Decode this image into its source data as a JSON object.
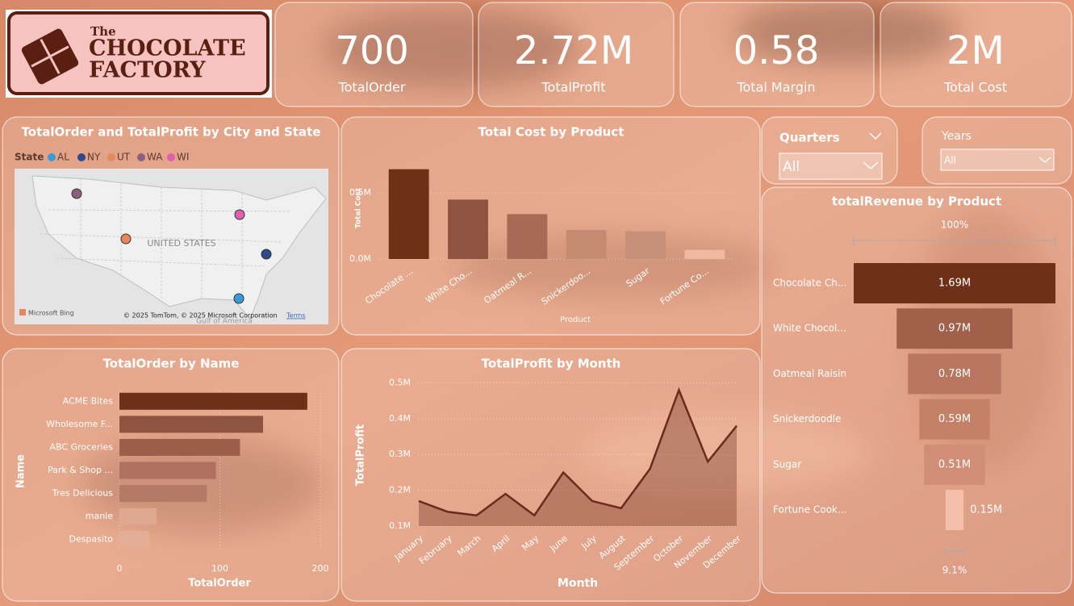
{
  "logo": {
    "small": "The",
    "line1": "CHOCOLATE",
    "line2": "FACTORY"
  },
  "kpis": [
    {
      "value": "700",
      "label": "TotalOrder"
    },
    {
      "value": "2.72M",
      "label": "TotalProfit"
    },
    {
      "value": "0.58",
      "label": "Total Margin"
    },
    {
      "value": "2M",
      "label": "Total Cost"
    }
  ],
  "filters": [
    {
      "label": "Quarters",
      "selected": "All"
    },
    {
      "label": "Years",
      "selected": "All"
    }
  ],
  "map": {
    "title": "TotalOrder and TotalProfit by City and State",
    "legend_title": "State",
    "states": [
      {
        "name": "AL",
        "color": "#3a9ad9"
      },
      {
        "name": "NY",
        "color": "#2d4a8a"
      },
      {
        "name": "UT",
        "color": "#e8875a"
      },
      {
        "name": "WA",
        "color": "#8a6080"
      },
      {
        "name": "WI",
        "color": "#e060b0"
      }
    ],
    "country_label": "UNITED STATES",
    "sea_label": "Gulf of America",
    "provider": "Microsoft Bing",
    "copyright": "© 2025 TomTom, © 2025 Microsoft Corporation",
    "terms": "Terms"
  },
  "chart_data": [
    {
      "type": "bar",
      "title": "Total Cost by Product",
      "x_label": "Product",
      "y_label": "Total Cost",
      "categories": [
        "Chocolate ...",
        "White Cho...",
        "Oatmeal R...",
        "Snickerdoo...",
        "Sugar",
        "Fortune Co..."
      ],
      "values": [
        0.68,
        0.45,
        0.34,
        0.22,
        0.21,
        0.07
      ],
      "colors": [
        "#6e3018",
        "#8f5440",
        "#a86a55",
        "#c48a72",
        "#c89078",
        "#f0b8a0"
      ],
      "ylim": [
        0,
        0.77
      ],
      "yticks": [
        {
          "value": 0,
          "label": "0.0M"
        },
        {
          "value": 0.5,
          "label": "0.5M"
        }
      ],
      "grid": true
    },
    {
      "type": "funnel",
      "title": "totalRevenue by Product",
      "categories": [
        "Chocolate Ch...",
        "White Chocol...",
        "Oatmeal Raisin",
        "Snickerdoodle",
        "Sugar",
        "Fortune Cook..."
      ],
      "values": [
        1.69,
        0.97,
        0.78,
        0.59,
        0.51,
        0.15
      ],
      "value_labels": [
        "1.69M",
        "0.97M",
        "0.78M",
        "0.59M",
        "0.51M",
        "0.15M"
      ],
      "colors": [
        "#6e3018",
        "#a0604a",
        "#b87660",
        "#c58068",
        "#d08e76",
        "#f4c0ac"
      ],
      "annotations": [
        "100%",
        "9.1%"
      ]
    },
    {
      "type": "hbar",
      "title": "TotalOrder by Name",
      "x_label": "TotalOrder",
      "y_label": "Name",
      "categories": [
        "ACME Bites",
        "Wholesome F...",
        "ABC Groceries",
        "Park & Shop ...",
        "Tres Delicious",
        "manie",
        "Despasito"
      ],
      "values": [
        187,
        143,
        120,
        96,
        87,
        37,
        30
      ],
      "colors": [
        "#6e3018",
        "#8f5440",
        "#9c5e48",
        "#b07060",
        "#b47a66",
        "#e0a890",
        "#e4ae96"
      ],
      "xlim": [
        0,
        200
      ],
      "xticks": [
        0,
        100,
        200
      ],
      "grid": true
    },
    {
      "type": "area",
      "title": "TotalProfit by Month",
      "x_label": "Month",
      "y_label": "TotalProfit",
      "categories": [
        "January",
        "February",
        "March",
        "April",
        "May",
        "June",
        "July",
        "August",
        "September",
        "October",
        "November",
        "December"
      ],
      "values": [
        0.17,
        0.14,
        0.13,
        0.19,
        0.13,
        0.25,
        0.17,
        0.15,
        0.26,
        0.48,
        0.28,
        0.38
      ],
      "color": "#6b2a1a",
      "ylim": [
        0.1,
        0.51
      ],
      "yticks": [
        {
          "value": 0.1,
          "label": "0.1M"
        },
        {
          "value": 0.2,
          "label": "0.2M"
        },
        {
          "value": 0.3,
          "label": "0.3M"
        },
        {
          "value": 0.4,
          "label": "0.4M"
        },
        {
          "value": 0.5,
          "label": "0.5M"
        }
      ],
      "grid": true
    }
  ]
}
